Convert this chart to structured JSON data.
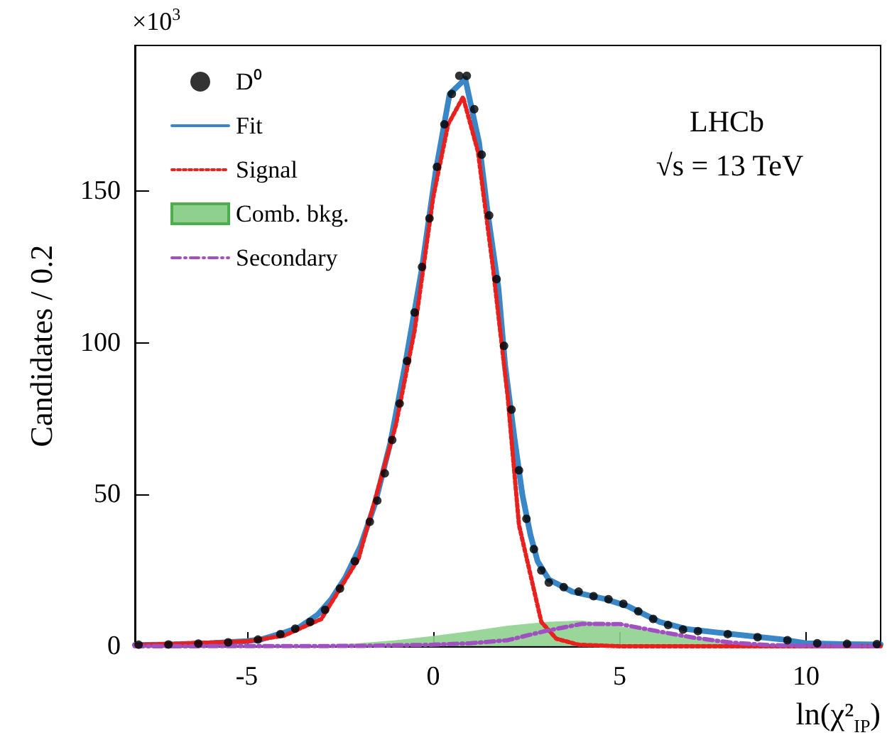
{
  "chart_data": {
    "type": "line",
    "xlabel": "ln(χ²$_{IP}$)",
    "ylabel": "Candidates / 0.2",
    "annotations": [
      "×10$^{3}$",
      "LHCb",
      "√s = 13 TeV"
    ],
    "xlim": [
      -8,
      12
    ],
    "xticks": [
      -5,
      0,
      5,
      10
    ],
    "ylim": [
      0,
      198
    ],
    "yticks": [
      0,
      50,
      100,
      150
    ],
    "grid": false,
    "legend": "top left",
    "series": [
      {
        "name": "D⁰",
        "type": "scatter",
        "marker": "circle",
        "color": "#000000",
        "x": [
          -7.9,
          -7.1,
          -6.3,
          -5.5,
          -4.7,
          -4.1,
          -3.7,
          -3.3,
          -2.9,
          -2.5,
          -2.1,
          -1.7,
          -1.5,
          -1.3,
          -1.1,
          -0.9,
          -0.7,
          -0.5,
          -0.3,
          -0.1,
          0.1,
          0.3,
          0.5,
          0.7,
          0.9,
          1.1,
          1.3,
          1.5,
          1.7,
          1.9,
          2.1,
          2.3,
          2.5,
          2.7,
          2.9,
          3.1,
          3.5,
          3.9,
          4.3,
          4.7,
          5.1,
          5.5,
          5.9,
          6.3,
          6.7,
          7.1,
          7.9,
          8.7,
          9.5,
          10.3,
          11.1,
          11.9
        ],
        "values": [
          0.5,
          0.6,
          0.9,
          1.3,
          2.2,
          4,
          5.8,
          8,
          12,
          19,
          28,
          41,
          48,
          57,
          68,
          80,
          94,
          110,
          125,
          141,
          158,
          172,
          182,
          188,
          188,
          177,
          162,
          142,
          121,
          99,
          78,
          58,
          42,
          32,
          25,
          21,
          19.5,
          18,
          16.5,
          15.5,
          14,
          11.5,
          9,
          7,
          5.5,
          5,
          4,
          3,
          2,
          1,
          0.8,
          0.7
        ]
      },
      {
        "name": "Fit",
        "type": "line",
        "line_style": "solid",
        "color": "#3a87c8",
        "x": [
          -8,
          -7,
          -6,
          -5,
          -4.6,
          -4,
          -3.6,
          -3.1,
          -2.74,
          -2.36,
          -1.95,
          -1.56,
          -1.15,
          -0.75,
          -0.31,
          0.06,
          0.44,
          0.86,
          1.23,
          1.46,
          1.75,
          1.93,
          2.18,
          2.39,
          2.61,
          2.8,
          3.1,
          3.73,
          4.6,
          5.22,
          6.08,
          6.83,
          8.08,
          9.33,
          10,
          11,
          12
        ],
        "values": [
          0.4,
          0.6,
          1.0,
          1.7,
          2.3,
          4.5,
          6.2,
          10.4,
          15.4,
          22.6,
          33,
          47,
          67,
          93,
          124,
          156,
          182,
          187,
          166,
          143,
          118,
          92.5,
          68.6,
          50,
          36.6,
          28,
          22,
          18,
          15.6,
          13.2,
          8,
          5.6,
          3.9,
          2.3,
          1.0,
          0.7,
          0.6
        ]
      },
      {
        "name": "Signal",
        "type": "line",
        "line_style": "dotted",
        "color": "#e8201e",
        "x": [
          -8,
          -5,
          -4,
          -3,
          -2,
          -1,
          -0.5,
          0,
          0.4,
          0.8,
          1.2,
          1.6,
          2.0,
          2.3,
          2.6,
          2.9,
          3.3,
          3.9,
          5,
          12
        ],
        "values": [
          0.4,
          1.6,
          3.5,
          9,
          29,
          73,
          104,
          148,
          172,
          181,
          163,
          125,
          82,
          40,
          24,
          8,
          2.5,
          0.5,
          0,
          0
        ]
      },
      {
        "name": "Comb. bkg.",
        "type": "area",
        "color": "#8fd08f",
        "x": [
          -8,
          -4,
          -3,
          -2,
          -1,
          0,
          1,
          2,
          3,
          4,
          5,
          6,
          7,
          8,
          9,
          10,
          12
        ],
        "values": [
          0,
          0,
          0.3,
          1,
          2,
          3.4,
          5,
          6.8,
          8,
          8.5,
          6.5,
          5,
          2.5,
          0.8,
          0.2,
          0,
          0
        ]
      },
      {
        "name": "Secondary",
        "type": "line",
        "line_style": "dashed",
        "color": "#a050c0",
        "x": [
          -8,
          -2,
          0,
          1,
          2,
          3,
          4,
          5,
          6,
          7,
          8,
          9,
          10,
          12
        ],
        "values": [
          0,
          0.1,
          0.5,
          1,
          2,
          5,
          7.4,
          7.3,
          5,
          2.8,
          1.2,
          0.4,
          0.1,
          0
        ]
      }
    ]
  }
}
